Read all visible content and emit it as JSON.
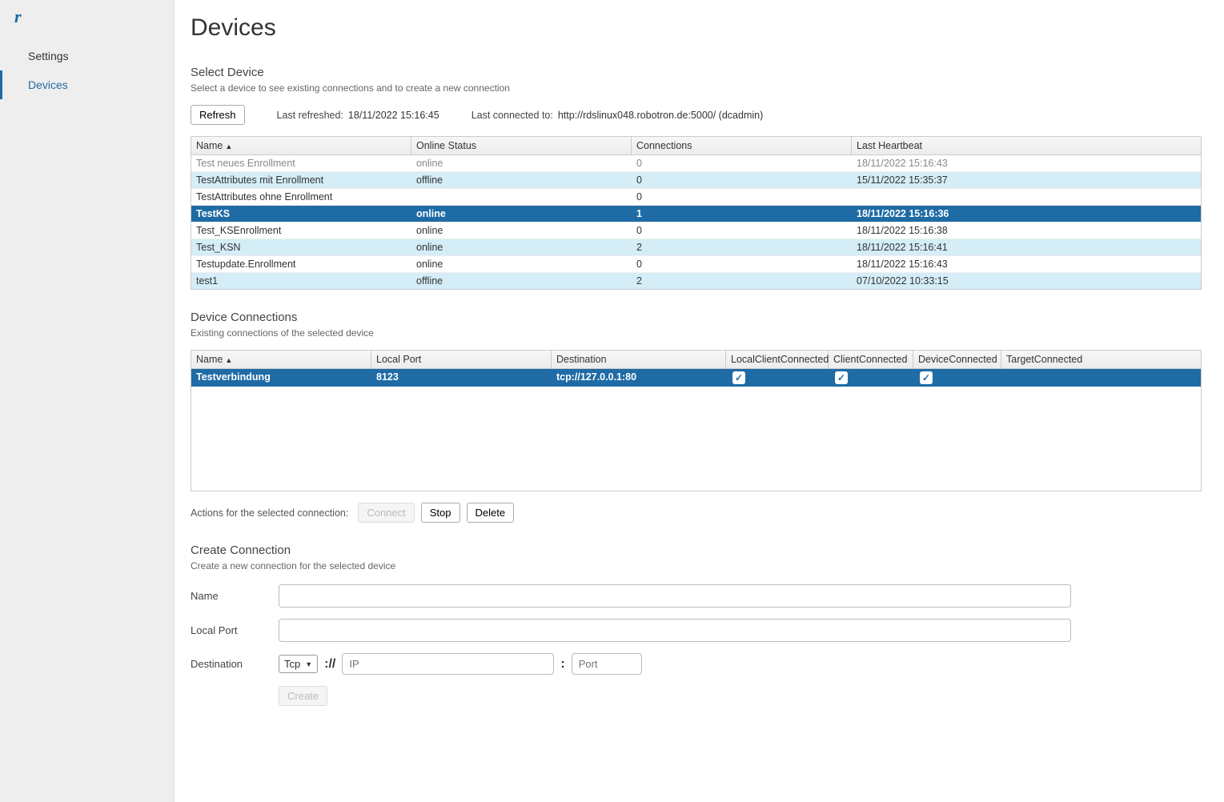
{
  "sidebar": {
    "logo_text": "r",
    "items": [
      {
        "label": "Settings",
        "active": false
      },
      {
        "label": "Devices",
        "active": true
      }
    ]
  },
  "page": {
    "title": "Devices"
  },
  "select_device": {
    "title": "Select Device",
    "subtitle": "Select a device to see existing connections and to create a new connection",
    "refresh_label": "Refresh",
    "last_refreshed_label": "Last refreshed:",
    "last_refreshed_value": "18/11/2022 15:16:45",
    "last_connected_label": "Last connected to:",
    "last_connected_value": "http://rdslinux048.robotron.de:5000/ (dcadmin)",
    "columns": {
      "name": "Name",
      "status": "Online Status",
      "connections": "Connections",
      "heartbeat": "Last Heartbeat"
    },
    "rows": [
      {
        "name": "Test neues Enrollment",
        "status": "online",
        "conn": "0",
        "hb": "18/11/2022 15:16:43",
        "style": "clipped"
      },
      {
        "name": "TestAttributes mit Enrollment",
        "status": "offline",
        "conn": "0",
        "hb": "15/11/2022 15:35:37",
        "style": "alt"
      },
      {
        "name": "TestAttributes ohne Enrollment",
        "status": "",
        "conn": "0",
        "hb": "",
        "style": "plain"
      },
      {
        "name": "TestKS",
        "status": "online",
        "conn": "1",
        "hb": "18/11/2022 15:16:36",
        "style": "sel"
      },
      {
        "name": "Test_KSEnrollment",
        "status": "online",
        "conn": "0",
        "hb": "18/11/2022 15:16:38",
        "style": "plain"
      },
      {
        "name": "Test_KSN",
        "status": "online",
        "conn": "2",
        "hb": "18/11/2022 15:16:41",
        "style": "alt"
      },
      {
        "name": "Testupdate.Enrollment",
        "status": "online",
        "conn": "0",
        "hb": "18/11/2022 15:16:43",
        "style": "plain"
      },
      {
        "name": "test1",
        "status": "offline",
        "conn": "2",
        "hb": "07/10/2022 10:33:15",
        "style": "alt"
      }
    ]
  },
  "device_connections": {
    "title": "Device Connections",
    "subtitle": "Existing connections of the selected device",
    "columns": {
      "name": "Name",
      "port": "Local Port",
      "dest": "Destination",
      "lcc": "LocalClientConnected",
      "cc": "ClientConnected",
      "dc": "DeviceConnected",
      "tc": "TargetConnected"
    },
    "rows": [
      {
        "name": "Testverbindung",
        "port": "8123",
        "dest": "tcp://127.0.0.1:80",
        "lcc": true,
        "cc": true,
        "dc": true,
        "tc": false
      }
    ],
    "actions_label": "Actions for the selected connection:",
    "connect_label": "Connect",
    "stop_label": "Stop",
    "delete_label": "Delete"
  },
  "create_connection": {
    "title": "Create Connection",
    "subtitle": "Create a new connection for the selected device",
    "name_label": "Name",
    "localport_label": "Local Port",
    "destination_label": "Destination",
    "proto_value": "Tcp",
    "scheme_sep": "://",
    "ip_placeholder": "IP",
    "colon": ":",
    "port_placeholder": "Port",
    "create_label": "Create"
  },
  "colors": {
    "accent": "#1e6ba5",
    "alt_row": "#d4edf7",
    "sidebar_bg": "#eeeeee"
  }
}
